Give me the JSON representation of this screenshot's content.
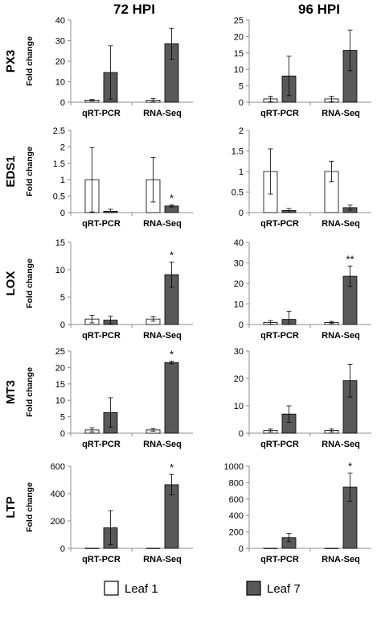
{
  "column_titles": [
    "72 HPI",
    "96 HPI"
  ],
  "legend": [
    {
      "label": "Leaf 1",
      "color": "#ffffff"
    },
    {
      "label": "Leaf 7",
      "color": "#595959"
    }
  ],
  "colors": {
    "leaf1": "#ffffff",
    "leaf7": "#595959",
    "axis": "#8c8c8c",
    "error": "#000000"
  },
  "chart_data": [
    {
      "type": "bar",
      "gene": "PX3",
      "title": "72 HPI",
      "ylabel": "Fold change",
      "ylim": [
        0,
        40
      ],
      "yticks": [
        0,
        10,
        20,
        30,
        40
      ],
      "categories": [
        "qRT-PCR",
        "RNA-Seq"
      ],
      "series": [
        {
          "name": "Leaf 1",
          "values": [
            1,
            1
          ],
          "errors": [
            0.3,
            0.8
          ]
        },
        {
          "name": "Leaf 7",
          "values": [
            14.5,
            28.5
          ],
          "errors": [
            13,
            7.5
          ]
        }
      ],
      "annotations": []
    },
    {
      "type": "bar",
      "gene": "PX3",
      "title": "96 HPI",
      "ylabel": "",
      "ylim": [
        0,
        25
      ],
      "yticks": [
        0,
        5,
        10,
        15,
        20,
        25
      ],
      "categories": [
        "qRT-PCR",
        "RNA-Seq"
      ],
      "series": [
        {
          "name": "Leaf 1",
          "values": [
            1,
            1
          ],
          "errors": [
            0.8,
            0.8
          ]
        },
        {
          "name": "Leaf 7",
          "values": [
            8,
            15.8
          ],
          "errors": [
            6,
            6.2
          ]
        }
      ],
      "annotations": []
    },
    {
      "type": "bar",
      "gene": "EDS1",
      "title": "72 HPI",
      "ylabel": "Fold change",
      "ylim": [
        0,
        2.5
      ],
      "yticks": [
        0,
        0.5,
        1,
        1.5,
        2,
        2.5
      ],
      "categories": [
        "qRT-PCR",
        "RNA-Seq"
      ],
      "series": [
        {
          "name": "Leaf 1",
          "values": [
            1,
            1
          ],
          "errors": [
            0.98,
            0.68
          ]
        },
        {
          "name": "Leaf 7",
          "values": [
            0.04,
            0.2
          ],
          "errors": [
            0.06,
            0.03
          ]
        }
      ],
      "annotations": [
        {
          "category": "RNA-Seq",
          "series": "Leaf 7",
          "text": "*"
        }
      ]
    },
    {
      "type": "bar",
      "gene": "EDS1",
      "title": "96 HPI",
      "ylabel": "",
      "ylim": [
        0,
        2
      ],
      "yticks": [
        0,
        0.5,
        1,
        1.5,
        2
      ],
      "categories": [
        "qRT-PCR",
        "RNA-Seq"
      ],
      "series": [
        {
          "name": "Leaf 1",
          "values": [
            1,
            1
          ],
          "errors": [
            0.55,
            0.25
          ]
        },
        {
          "name": "Leaf 7",
          "values": [
            0.05,
            0.12
          ],
          "errors": [
            0.05,
            0.06
          ]
        }
      ],
      "annotations": []
    },
    {
      "type": "bar",
      "gene": "LOX",
      "title": "72 HPI",
      "ylabel": "Fold change",
      "ylim": [
        0,
        15
      ],
      "yticks": [
        0,
        5,
        10,
        15
      ],
      "categories": [
        "qRT-PCR",
        "RNA-Seq"
      ],
      "series": [
        {
          "name": "Leaf 1",
          "values": [
            1,
            1
          ],
          "errors": [
            0.7,
            0.4
          ]
        },
        {
          "name": "Leaf 7",
          "values": [
            0.8,
            9.1
          ],
          "errors": [
            0.7,
            2.3
          ]
        }
      ],
      "annotations": [
        {
          "category": "RNA-Seq",
          "series": "Leaf 7",
          "text": "*"
        }
      ]
    },
    {
      "type": "bar",
      "gene": "LOX",
      "title": "96 HPI",
      "ylabel": "",
      "ylim": [
        0,
        40
      ],
      "yticks": [
        0,
        10,
        20,
        30,
        40
      ],
      "categories": [
        "qRT-PCR",
        "RNA-Seq"
      ],
      "series": [
        {
          "name": "Leaf 1",
          "values": [
            1,
            1
          ],
          "errors": [
            0.9,
            0.5
          ]
        },
        {
          "name": "Leaf 7",
          "values": [
            2.5,
            23.5
          ],
          "errors": [
            4,
            5
          ]
        }
      ],
      "annotations": [
        {
          "category": "RNA-Seq",
          "series": "Leaf 7",
          "text": "**"
        }
      ]
    },
    {
      "type": "bar",
      "gene": "MT3",
      "title": "72 HPI",
      "ylabel": "Fold change",
      "ylim": [
        0,
        25
      ],
      "yticks": [
        0,
        5,
        10,
        15,
        20,
        25
      ],
      "categories": [
        "qRT-PCR",
        "RNA-Seq"
      ],
      "series": [
        {
          "name": "Leaf 1",
          "values": [
            1,
            1
          ],
          "errors": [
            0.6,
            0.4
          ]
        },
        {
          "name": "Leaf 7",
          "values": [
            6.3,
            21.5
          ],
          "errors": [
            4.5,
            0.4
          ]
        }
      ],
      "annotations": [
        {
          "category": "RNA-Seq",
          "series": "Leaf 7",
          "text": "*"
        }
      ]
    },
    {
      "type": "bar",
      "gene": "MT3",
      "title": "96 HPI",
      "ylabel": "",
      "ylim": [
        0,
        30
      ],
      "yticks": [
        0,
        10,
        20,
        30
      ],
      "categories": [
        "qRT-PCR",
        "RNA-Seq"
      ],
      "series": [
        {
          "name": "Leaf 1",
          "values": [
            1,
            1
          ],
          "errors": [
            0.5,
            0.5
          ]
        },
        {
          "name": "Leaf 7",
          "values": [
            7,
            19.2
          ],
          "errors": [
            3,
            6
          ]
        }
      ],
      "annotations": []
    },
    {
      "type": "bar",
      "gene": "LTP",
      "title": "72 HPI",
      "ylabel": "Fold change",
      "ylim": [
        0,
        600
      ],
      "yticks": [
        0,
        200,
        400,
        600
      ],
      "categories": [
        "qRT-PCR",
        "RNA-Seq"
      ],
      "series": [
        {
          "name": "Leaf 1",
          "values": [
            1,
            1
          ],
          "errors": [
            0,
            0
          ]
        },
        {
          "name": "Leaf 7",
          "values": [
            150,
            465
          ],
          "errors": [
            125,
            75
          ]
        }
      ],
      "annotations": [
        {
          "category": "RNA-Seq",
          "series": "Leaf 7",
          "text": "*"
        }
      ]
    },
    {
      "type": "bar",
      "gene": "LTP",
      "title": "96 HPI",
      "ylabel": "",
      "ylim": [
        0,
        1000
      ],
      "yticks": [
        0,
        200,
        400,
        600,
        800,
        1000
      ],
      "categories": [
        "qRT-PCR",
        "RNA-Seq"
      ],
      "series": [
        {
          "name": "Leaf 1",
          "values": [
            1,
            1
          ],
          "errors": [
            0,
            0
          ]
        },
        {
          "name": "Leaf 7",
          "values": [
            130,
            745
          ],
          "errors": [
            50,
            170
          ]
        }
      ],
      "annotations": [
        {
          "category": "RNA-Seq",
          "series": "Leaf 7",
          "text": "*"
        }
      ]
    }
  ]
}
